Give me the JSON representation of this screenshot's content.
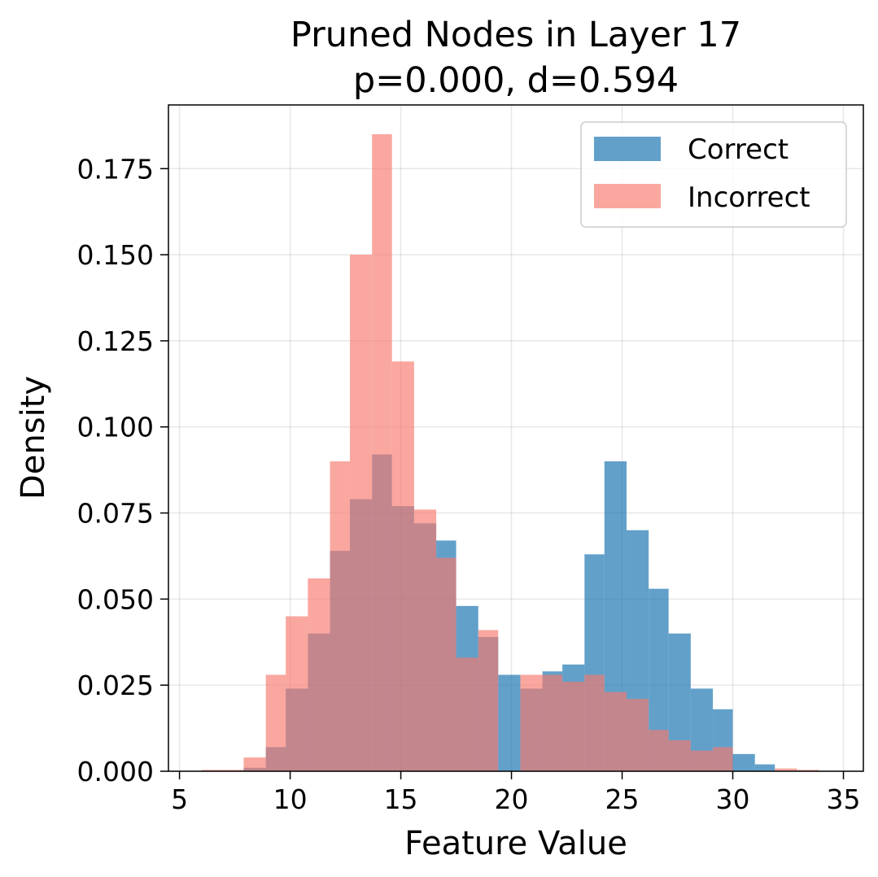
{
  "chart_data": {
    "type": "bar",
    "title_lines": [
      "Pruned Nodes in Layer 17",
      "p=0.000, d=0.594"
    ],
    "xlabel": "Feature Value",
    "ylabel": "Density",
    "xlim": [
      4.5,
      35.9
    ],
    "ylim": [
      0,
      0.1935
    ],
    "xticks": [
      5,
      10,
      15,
      20,
      25,
      30,
      35
    ],
    "yticks": [
      0.0,
      0.025,
      0.05,
      0.075,
      0.1,
      0.125,
      0.15,
      0.175
    ],
    "ytick_labels": [
      "0.000",
      "0.025",
      "0.050",
      "0.075",
      "0.100",
      "0.125",
      "0.150",
      "0.175"
    ],
    "grid": true,
    "legend_position": "upper right",
    "series": [
      {
        "name": "Correct",
        "color": "#1f77b4",
        "opacity": 0.7,
        "bins": [
          [
            7.9,
            8.9,
            0.001
          ],
          [
            8.9,
            9.8,
            0.007
          ],
          [
            9.8,
            10.8,
            0.024
          ],
          [
            10.8,
            11.8,
            0.04
          ],
          [
            11.8,
            12.7,
            0.064
          ],
          [
            12.7,
            13.7,
            0.079
          ],
          [
            13.7,
            14.6,
            0.092
          ],
          [
            14.6,
            15.6,
            0.077
          ],
          [
            15.6,
            16.6,
            0.072
          ],
          [
            16.6,
            17.5,
            0.067
          ],
          [
            17.5,
            18.5,
            0.048
          ],
          [
            18.5,
            19.4,
            0.039
          ],
          [
            19.4,
            20.4,
            0.028
          ],
          [
            20.4,
            21.4,
            0.024
          ],
          [
            21.4,
            22.3,
            0.029
          ],
          [
            22.3,
            23.3,
            0.031
          ],
          [
            23.3,
            24.2,
            0.063
          ],
          [
            24.2,
            25.2,
            0.09
          ],
          [
            25.2,
            26.2,
            0.07
          ],
          [
            26.2,
            27.1,
            0.053
          ],
          [
            27.1,
            28.1,
            0.04
          ],
          [
            28.1,
            29.1,
            0.024
          ],
          [
            29.1,
            30.0,
            0.018
          ],
          [
            30.0,
            31.0,
            0.005
          ],
          [
            31.0,
            31.9,
            0.002
          ]
        ]
      },
      {
        "name": "Incorrect",
        "color": "#f8786b",
        "opacity": 0.65,
        "bins": [
          [
            6.0,
            7.0,
            0.0004
          ],
          [
            7.0,
            7.9,
            0.0004
          ],
          [
            7.9,
            8.9,
            0.004
          ],
          [
            8.9,
            9.8,
            0.028
          ],
          [
            9.8,
            10.8,
            0.045
          ],
          [
            10.8,
            11.8,
            0.056
          ],
          [
            11.8,
            12.7,
            0.09
          ],
          [
            12.7,
            13.7,
            0.15
          ],
          [
            13.7,
            14.6,
            0.185
          ],
          [
            14.6,
            15.6,
            0.119
          ],
          [
            15.6,
            16.6,
            0.076
          ],
          [
            16.6,
            17.5,
            0.062
          ],
          [
            17.5,
            18.5,
            0.033
          ],
          [
            18.5,
            19.4,
            0.041
          ],
          [
            19.4,
            20.4,
            0.0
          ],
          [
            20.4,
            21.4,
            0.028
          ],
          [
            21.4,
            22.3,
            0.028
          ],
          [
            22.3,
            23.3,
            0.026
          ],
          [
            23.3,
            24.2,
            0.028
          ],
          [
            24.2,
            25.2,
            0.023
          ],
          [
            25.2,
            26.2,
            0.021
          ],
          [
            26.2,
            27.1,
            0.012
          ],
          [
            27.1,
            28.1,
            0.009
          ],
          [
            28.1,
            29.1,
            0.006
          ],
          [
            29.1,
            30.0,
            0.007
          ],
          [
            30.0,
            31.0,
            0.0
          ],
          [
            31.0,
            31.9,
            0.0
          ],
          [
            31.9,
            32.9,
            0.0008
          ],
          [
            32.9,
            33.9,
            0.0004
          ]
        ]
      }
    ]
  }
}
